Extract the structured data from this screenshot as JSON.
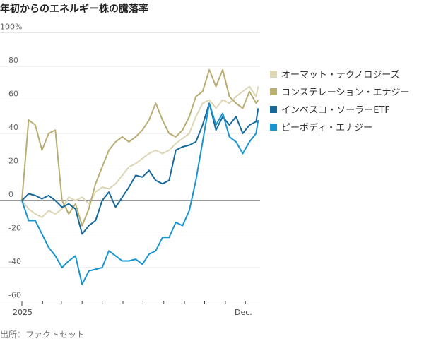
{
  "title": "年初からのエネルギー株の騰落率",
  "source": "出所：ファクトセット",
  "chart_data": {
    "type": "line",
    "xlabel": "",
    "ylabel": "",
    "ylim": [
      -60,
      100
    ],
    "yticks": [
      100,
      80,
      60,
      40,
      20,
      0,
      -20,
      -40,
      -60
    ],
    "ytick_labels": [
      "100%",
      "80",
      "60",
      "40",
      "20",
      "0",
      "-20",
      "-40",
      "-60"
    ],
    "xtick_labels": {
      "start": "2025",
      "end": "Dec."
    },
    "grid": true,
    "legend_placement": "right",
    "x": [
      "2025-01-01",
      "2025-01-11",
      "2025-01-21",
      "2025-01-31",
      "2025-02-10",
      "2025-02-20",
      "2025-03-02",
      "2025-03-12",
      "2025-03-22",
      "2025-04-01",
      "2025-04-11",
      "2025-04-21",
      "2025-05-01",
      "2025-05-11",
      "2025-05-21",
      "2025-05-31",
      "2025-06-10",
      "2025-06-20",
      "2025-06-30",
      "2025-07-10",
      "2025-07-20",
      "2025-07-30",
      "2025-08-09",
      "2025-08-19",
      "2025-08-29",
      "2025-09-08",
      "2025-09-18",
      "2025-09-28",
      "2025-10-08",
      "2025-10-18",
      "2025-10-28",
      "2025-11-07",
      "2025-11-17",
      "2025-11-27",
      "2025-12-07",
      "2025-12-17",
      "2025-12-20"
    ],
    "series": [
      {
        "name": "オーマット・テクノロジーズ",
        "color": "#dcd6b4",
        "values": [
          0,
          -5,
          -8,
          -10,
          -6,
          -8,
          -5,
          2,
          0,
          2,
          -2,
          5,
          8,
          7,
          10,
          15,
          20,
          22,
          25,
          28,
          30,
          28,
          30,
          34,
          37,
          40,
          50,
          58,
          60,
          55,
          60,
          58,
          62,
          65,
          68,
          62,
          68
        ]
      },
      {
        "name": "コンステレーション・エナジー",
        "color": "#b8ad72",
        "values": [
          0,
          48,
          45,
          30,
          40,
          42,
          0,
          -8,
          -2,
          -15,
          -5,
          10,
          20,
          30,
          35,
          38,
          35,
          38,
          42,
          48,
          58,
          48,
          40,
          38,
          42,
          50,
          62,
          65,
          78,
          68,
          78,
          62,
          58,
          55,
          65,
          58,
          60
        ]
      },
      {
        "name": "インベスコ・ソーラーETF",
        "color": "#17699a",
        "values": [
          0,
          4,
          3,
          1,
          3,
          0,
          -4,
          -2,
          -5,
          -20,
          -15,
          -12,
          0,
          5,
          -4,
          2,
          8,
          15,
          14,
          18,
          12,
          10,
          12,
          30,
          32,
          33,
          35,
          45,
          58,
          42,
          50,
          45,
          50,
          40,
          45,
          47,
          55
        ]
      },
      {
        "name": "ピーボディ・エナジー",
        "color": "#1a94cf",
        "values": [
          0,
          -12,
          -12,
          -20,
          -28,
          -33,
          -40,
          -36,
          -33,
          -50,
          -42,
          -41,
          -40,
          -30,
          -33,
          -36,
          -36,
          -35,
          -38,
          -32,
          -30,
          -22,
          -22,
          -13,
          -15,
          -6,
          12,
          35,
          58,
          45,
          52,
          38,
          35,
          28,
          35,
          40,
          48
        ]
      }
    ]
  }
}
